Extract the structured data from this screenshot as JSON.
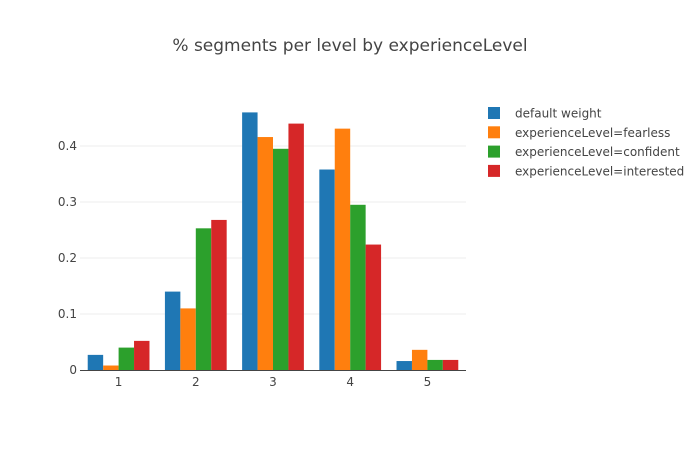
{
  "chart_data": {
    "type": "bar",
    "title": "% segments per level by experienceLevel",
    "xlabel": "",
    "ylabel": "",
    "categories": [
      "1",
      "2",
      "3",
      "4",
      "5"
    ],
    "ylim": [
      0,
      0.5
    ],
    "yticks": [
      0,
      0.1,
      0.2,
      0.3,
      0.4
    ],
    "ytick_labels": [
      "0",
      "0.1",
      "0.2",
      "0.3",
      "0.4"
    ],
    "grid": true,
    "legend_position": "top-right",
    "series": [
      {
        "name": "default weight",
        "color": "#1f77b4",
        "values": [
          0.027,
          0.14,
          0.46,
          0.358,
          0.016
        ]
      },
      {
        "name": "experienceLevel=fearless",
        "color": "#ff7f0e",
        "values": [
          0.008,
          0.11,
          0.416,
          0.431,
          0.036
        ]
      },
      {
        "name": "experienceLevel=confident",
        "color": "#2ca02c",
        "values": [
          0.04,
          0.253,
          0.395,
          0.295,
          0.018
        ]
      },
      {
        "name": "experienceLevel=interested",
        "color": "#d62728",
        "values": [
          0.052,
          0.268,
          0.44,
          0.224,
          0.018
        ]
      }
    ]
  }
}
